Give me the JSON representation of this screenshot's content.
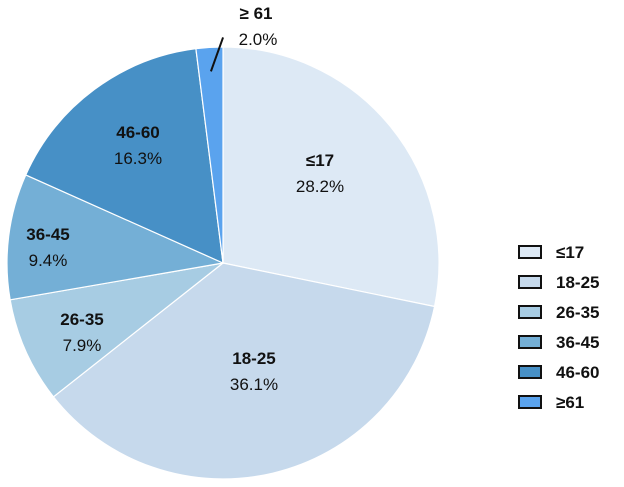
{
  "chart_data": {
    "type": "pie",
    "title": "",
    "slices": [
      {
        "category": "≤17",
        "value": 28.2,
        "value_label": "28.2%",
        "color": "#dde9f5"
      },
      {
        "category": "18-25",
        "value": 36.1,
        "value_label": "36.1%",
        "color": "#c6d9ec"
      },
      {
        "category": "26-35",
        "value": 7.9,
        "value_label": "7.9%",
        "color": "#a7cce3"
      },
      {
        "category": "36-45",
        "value": 9.4,
        "value_label": "9.4%",
        "color": "#74afd6"
      },
      {
        "category": "46-60",
        "value": 16.3,
        "value_label": "16.3%",
        "color": "#4790c6"
      },
      {
        "category": "≥ 61",
        "value": 2.0,
        "value_label": "2.0%",
        "color": "#5aa3ee"
      }
    ],
    "legend": {
      "position": "right",
      "entries": [
        "≤17",
        "18-25",
        "26-35",
        "36-45",
        "46-60",
        "≥61"
      ]
    }
  }
}
